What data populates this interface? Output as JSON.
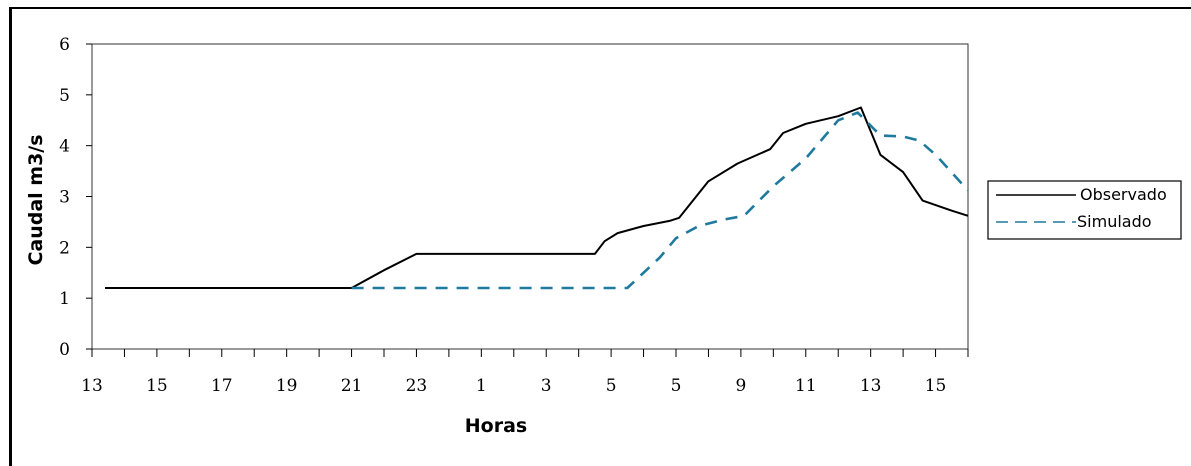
{
  "chart_data": {
    "type": "line",
    "xlabel": "Horas",
    "ylabel": "Caudal m3/s",
    "ylim": [
      0,
      6
    ],
    "y_ticks": [
      "0",
      "1",
      "2",
      "3",
      "4",
      "5",
      "6"
    ],
    "x_tick_labels": [
      "13",
      "15",
      "17",
      "19",
      "21",
      "23",
      "1",
      "3",
      "5",
      "5",
      "9",
      "11",
      "13",
      "15"
    ],
    "x_index_range": [
      0,
      27
    ],
    "grid": false,
    "legend_position": "right",
    "series": [
      {
        "name": "Observado",
        "color": "#000000",
        "style": "solid",
        "points": [
          [
            0.4,
            1.2
          ],
          [
            8.0,
            1.2
          ],
          [
            9.0,
            1.55
          ],
          [
            10.0,
            1.87
          ],
          [
            15.0,
            1.87
          ],
          [
            15.5,
            1.87
          ],
          [
            15.8,
            2.12
          ],
          [
            16.2,
            2.28
          ],
          [
            17.0,
            2.42
          ],
          [
            17.8,
            2.52
          ],
          [
            18.1,
            2.58
          ],
          [
            19.0,
            3.3
          ],
          [
            19.9,
            3.65
          ],
          [
            20.9,
            3.93
          ],
          [
            21.3,
            4.25
          ],
          [
            22.0,
            4.43
          ],
          [
            23.0,
            4.58
          ],
          [
            23.7,
            4.75
          ],
          [
            24.3,
            3.82
          ],
          [
            25.0,
            3.48
          ],
          [
            25.6,
            2.92
          ],
          [
            26.5,
            2.72
          ],
          [
            27.0,
            2.62
          ]
        ]
      },
      {
        "name": "Simulado",
        "color": "#1f7a9e",
        "style": "dashed",
        "points": [
          [
            8.0,
            1.2
          ],
          [
            16.5,
            1.2
          ],
          [
            17.5,
            1.8
          ],
          [
            18.0,
            2.18
          ],
          [
            18.7,
            2.42
          ],
          [
            19.5,
            2.55
          ],
          [
            20.1,
            2.62
          ],
          [
            21.0,
            3.2
          ],
          [
            22.0,
            3.75
          ],
          [
            23.0,
            4.5
          ],
          [
            23.6,
            4.65
          ],
          [
            24.3,
            4.2
          ],
          [
            25.0,
            4.18
          ],
          [
            25.5,
            4.1
          ],
          [
            26.0,
            3.82
          ],
          [
            27.0,
            3.12
          ]
        ]
      }
    ]
  }
}
